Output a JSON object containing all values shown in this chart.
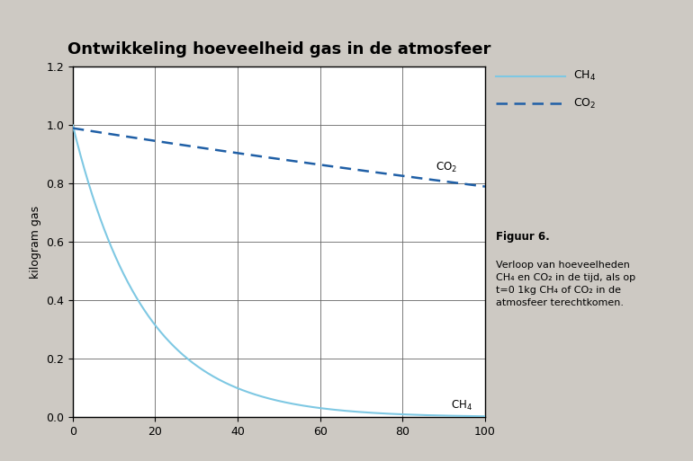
{
  "title": "Ontwikkeling hoeveelheid gas in de atmosfeer",
  "ylabel": "kilogram gas",
  "xlim": [
    0,
    100
  ],
  "ylim": [
    0,
    1.2
  ],
  "xticks": [
    0,
    20,
    40,
    60,
    80,
    100
  ],
  "yticks": [
    0.0,
    0.2,
    0.4,
    0.6,
    0.8,
    1.0,
    1.2
  ],
  "ch4_halflife": 12.0,
  "ch4_color": "#7ec8e3",
  "co2_color": "#1f5fa6",
  "background_color": "#cdc9c3",
  "plot_bg_color": "#ffffff",
  "title_fontsize": 13,
  "label_fontsize": 9,
  "tick_fontsize": 9,
  "figuur_title": "Figuur 6.",
  "figuur_text_line1": "Verloop van hoeveelheden",
  "figuur_text_line2": "CH₄ en CO₂ in de tijd, als op",
  "figuur_text_line3": "t=0 1kg CH₄ of CO₂ in de",
  "figuur_text_line4": "atmosfeer terechtkomen."
}
